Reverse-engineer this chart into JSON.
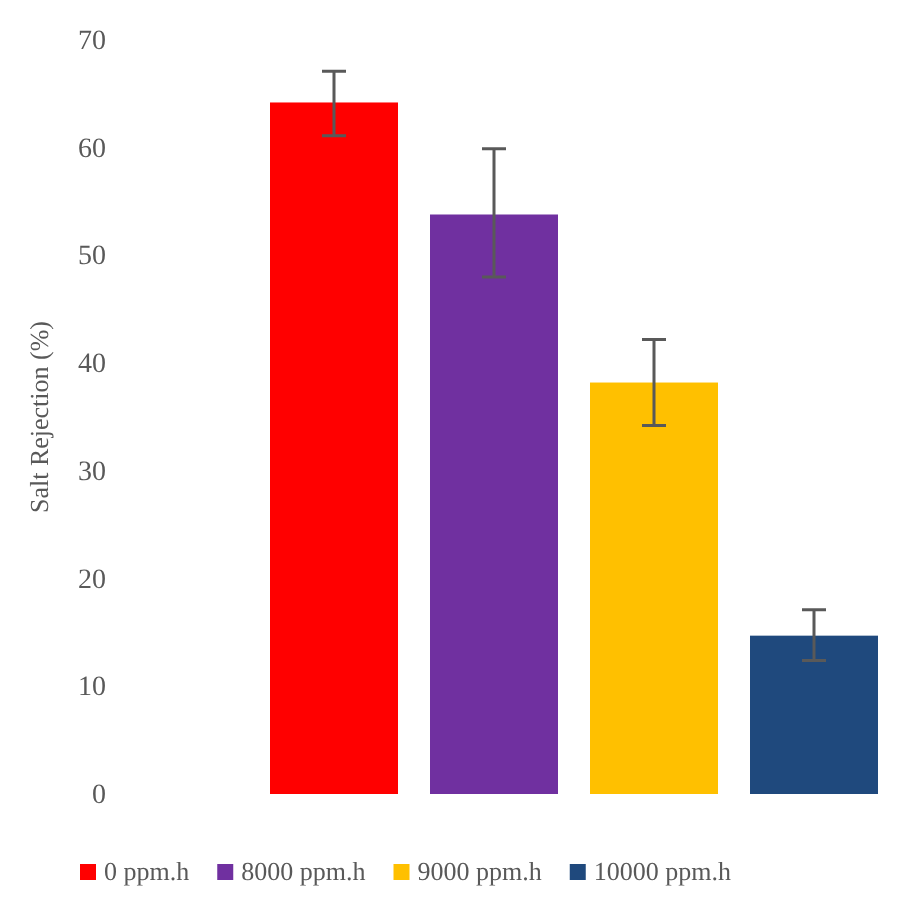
{
  "chart_data": {
    "type": "bar",
    "ylabel": "Salt Rejection (%)",
    "categories": [
      null
    ],
    "series": [
      {
        "name": "0 ppm.h",
        "color": "#ff0000",
        "values": [
          64.2
        ],
        "errors": [
          [
            61.1,
            67.1
          ]
        ]
      },
      {
        "name": "8000 ppm.h",
        "color": "#7030a0",
        "values": [
          53.8
        ],
        "errors": [
          [
            48,
            59.9
          ]
        ]
      },
      {
        "name": "9000 ppm.h",
        "color": "#ffc000",
        "values": [
          38.2
        ],
        "errors": [
          [
            34.2,
            42.2
          ]
        ]
      },
      {
        "name": "10000 ppm.h",
        "color": "#1f497d",
        "values": [
          14.7
        ],
        "errors": [
          [
            12.4,
            17.1
          ]
        ]
      }
    ],
    "ylim": [
      0,
      70
    ],
    "yticks": [
      0,
      10,
      20,
      30,
      40,
      50,
      60,
      70
    ],
    "legend": "bottom",
    "grid": false,
    "tick_labels": "y"
  }
}
